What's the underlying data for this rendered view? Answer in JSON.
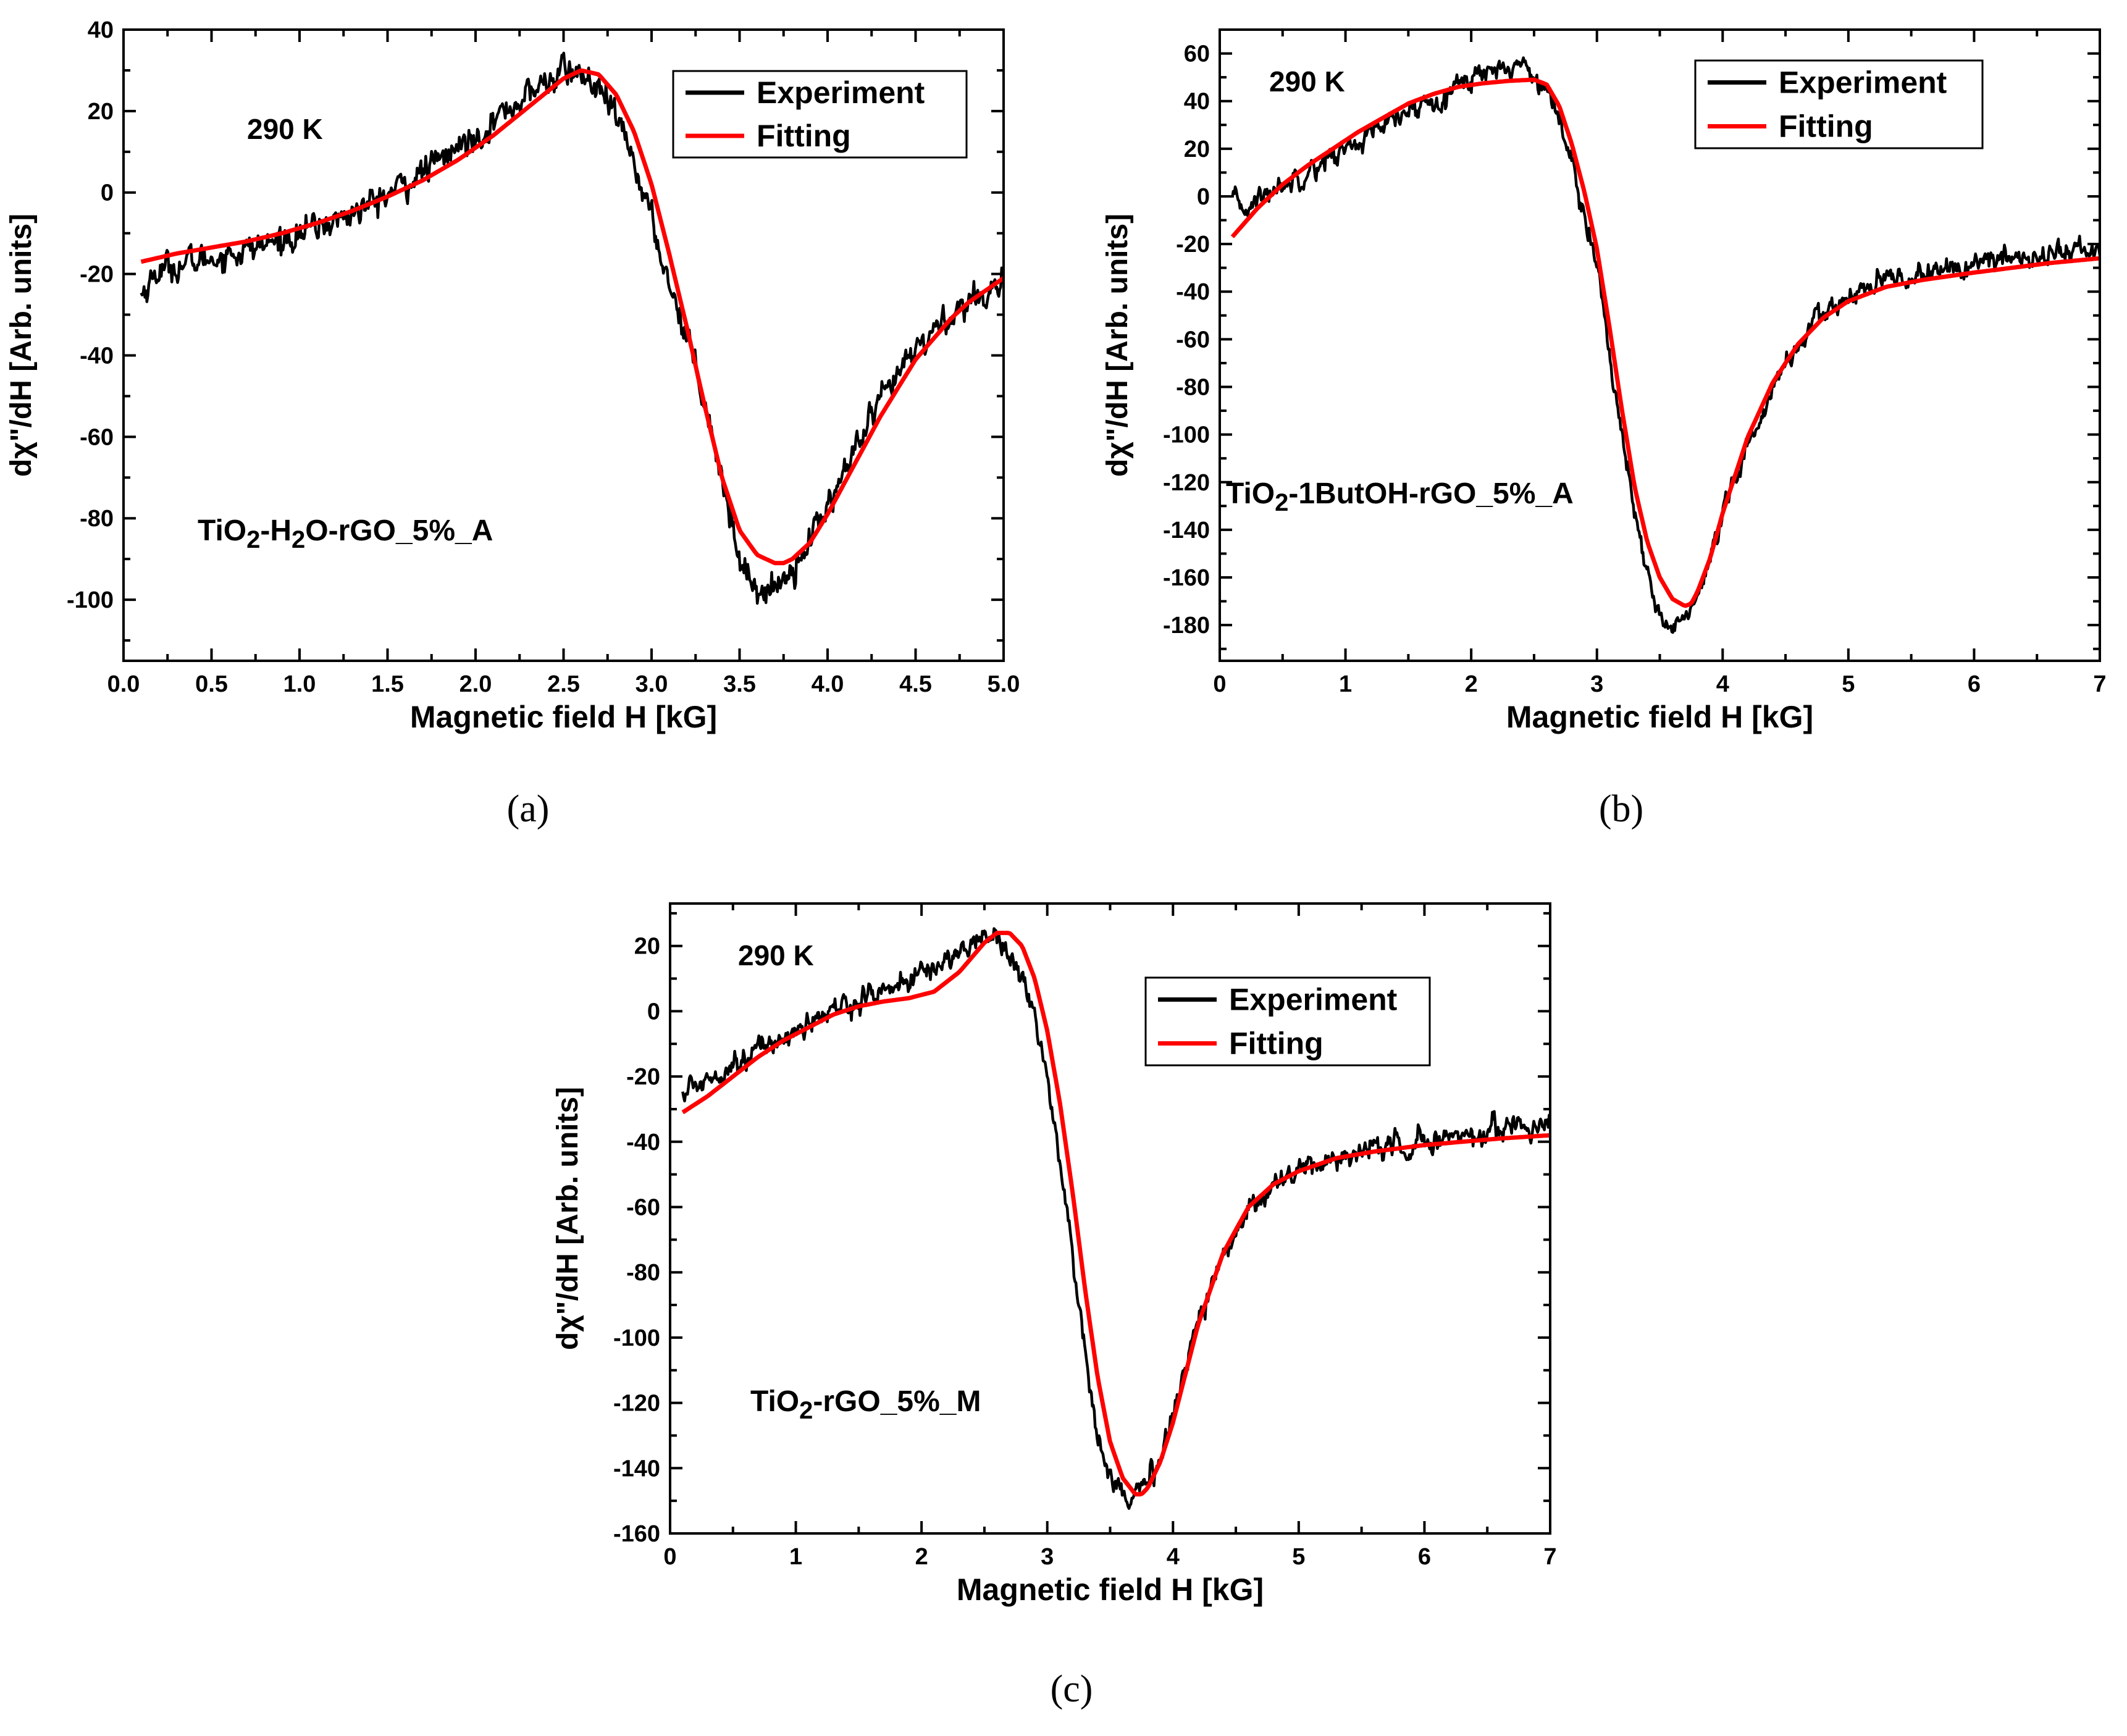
{
  "chart_data": [
    {
      "id": "a",
      "type": "line",
      "panel_label": "(a)",
      "title": "",
      "temperature_label": "290 K",
      "sample_label": {
        "parts": [
          {
            "t": "TiO"
          },
          {
            "t": "2",
            "sub": true
          },
          {
            "t": "-H"
          },
          {
            "t": "2",
            "sub": true
          },
          {
            "t": "O-rGO_5%_A"
          }
        ]
      },
      "xlabel": "Magnetic field H [kG]",
      "ylabel": "dχ\"/dH [Arb. units]",
      "xlim": [
        0.0,
        5.0
      ],
      "ylim": [
        -115,
        40
      ],
      "xticks": [
        0.0,
        0.5,
        1.0,
        1.5,
        2.0,
        2.5,
        3.0,
        3.5,
        4.0,
        4.5,
        5.0
      ],
      "xtick_labels": [
        "0.0",
        "0.5",
        "1.0",
        "1.5",
        "2.0",
        "2.5",
        "3.0",
        "3.5",
        "4.0",
        "4.5",
        "5.0"
      ],
      "yticks": [
        -100,
        -80,
        -60,
        -40,
        -20,
        0,
        20,
        40
      ],
      "ytick_labels": [
        "-100",
        "-80",
        "-60",
        "-40",
        "-20",
        "0",
        "20",
        "40"
      ],
      "legend": {
        "position": "top-right",
        "entries": [
          "Experiment",
          "Fitting"
        ]
      },
      "series": [
        {
          "name": "Experiment",
          "color": "#000000",
          "noise": 3.5,
          "x": [
            0.1,
            0.2,
            0.4,
            0.6,
            0.8,
            1.0,
            1.2,
            1.4,
            1.6,
            1.8,
            2.0,
            2.2,
            2.4,
            2.5,
            2.6,
            2.7,
            2.8,
            2.9,
            3.0,
            3.1,
            3.2,
            3.3,
            3.4,
            3.5,
            3.6,
            3.65,
            3.7,
            3.8,
            3.9,
            4.0,
            4.1,
            4.2,
            4.3,
            4.4,
            4.5,
            4.6,
            4.7,
            4.8,
            4.9,
            5.0
          ],
          "y": [
            -25,
            -19,
            -17,
            -15,
            -13,
            -10,
            -7,
            -3,
            2,
            8,
            14,
            21,
            27,
            30,
            29,
            25,
            18,
            8,
            -7,
            -22,
            -35,
            -50,
            -70,
            -90,
            -97,
            -99,
            -97,
            -92,
            -85,
            -77,
            -68,
            -60,
            -52,
            -45,
            -39,
            -34,
            -30,
            -27,
            -24,
            -22
          ]
        },
        {
          "name": "Fitting",
          "color": "#ff0000",
          "noise": 0,
          "x": [
            0.1,
            0.3,
            0.5,
            0.7,
            0.9,
            1.1,
            1.3,
            1.5,
            1.7,
            1.9,
            2.1,
            2.3,
            2.5,
            2.6,
            2.7,
            2.8,
            2.9,
            3.0,
            3.1,
            3.2,
            3.3,
            3.4,
            3.5,
            3.6,
            3.7,
            3.75,
            3.8,
            3.9,
            4.0,
            4.1,
            4.2,
            4.3,
            4.4,
            4.5,
            4.6,
            4.7,
            4.8,
            4.9,
            5.0
          ],
          "y": [
            -17,
            -15,
            -13.5,
            -12,
            -10,
            -7.5,
            -4.5,
            -1,
            3,
            8,
            14,
            21,
            28,
            30,
            29,
            24,
            15,
            2,
            -15,
            -33,
            -52,
            -70,
            -83,
            -89,
            -91,
            -91,
            -90,
            -86,
            -79,
            -71,
            -63,
            -55,
            -48,
            -41,
            -36,
            -31,
            -27,
            -24,
            -21
          ]
        }
      ]
    },
    {
      "id": "b",
      "type": "line",
      "panel_label": "(b)",
      "title": "",
      "temperature_label": "290 K",
      "sample_label": {
        "parts": [
          {
            "t": "TiO"
          },
          {
            "t": "2",
            "sub": true
          },
          {
            "t": "-1ButOH-rGO_5%_A"
          }
        ]
      },
      "xlabel": "Magnetic field H [kG]",
      "ylabel": "dχ\"/dH [Arb. units]",
      "xlim": [
        0,
        7
      ],
      "ylim": [
        -195,
        70
      ],
      "xticks": [
        0,
        1,
        2,
        3,
        4,
        5,
        6,
        7
      ],
      "xtick_labels": [
        "0",
        "1",
        "2",
        "3",
        "4",
        "5",
        "6",
        "7"
      ],
      "yticks": [
        -180,
        -160,
        -140,
        -120,
        -100,
        -80,
        -60,
        -40,
        -20,
        0,
        20,
        40,
        60
      ],
      "ytick_labels": [
        "-180",
        "-160",
        "-140",
        "-120",
        "-100",
        "-80",
        "-60",
        "-40",
        "-20",
        "0",
        "20",
        "40",
        "60"
      ],
      "legend": {
        "position": "top-right",
        "entries": [
          "Experiment",
          "Fitting"
        ]
      },
      "series": [
        {
          "name": "Experiment",
          "color": "#000000",
          "noise": 4.5,
          "x": [
            0.1,
            0.2,
            0.4,
            0.6,
            0.8,
            1.0,
            1.2,
            1.4,
            1.6,
            1.8,
            2.0,
            2.2,
            2.4,
            2.5,
            2.6,
            2.7,
            2.8,
            2.9,
            3.0,
            3.1,
            3.2,
            3.3,
            3.4,
            3.5,
            3.55,
            3.6,
            3.7,
            3.8,
            3.9,
            4.0,
            4.2,
            4.4,
            4.6,
            4.8,
            5.0,
            5.3,
            5.6,
            6.0,
            6.3,
            6.6,
            7.0
          ],
          "y": [
            -2,
            -5,
            2,
            8,
            14,
            20,
            26,
            32,
            38,
            44,
            50,
            54,
            55,
            52,
            45,
            32,
            15,
            -5,
            -30,
            -65,
            -100,
            -135,
            -160,
            -177,
            -181,
            -180,
            -176,
            -170,
            -155,
            -135,
            -105,
            -80,
            -62,
            -50,
            -42,
            -36,
            -32,
            -29,
            -26,
            -24,
            -22
          ]
        },
        {
          "name": "Fitting",
          "color": "#ff0000",
          "noise": 0,
          "x": [
            0.1,
            0.3,
            0.5,
            0.7,
            0.9,
            1.1,
            1.3,
            1.5,
            1.7,
            1.9,
            2.1,
            2.3,
            2.5,
            2.6,
            2.7,
            2.8,
            2.9,
            3.0,
            3.1,
            3.2,
            3.3,
            3.4,
            3.5,
            3.6,
            3.7,
            3.75,
            3.8,
            3.9,
            4.0,
            4.2,
            4.4,
            4.6,
            4.8,
            5.0,
            5.3,
            5.6,
            6.0,
            6.3,
            6.6,
            7.0
          ],
          "y": [
            -17,
            -5,
            5,
            13,
            20,
            27,
            33,
            39,
            43,
            46,
            47.5,
            48.5,
            49,
            47,
            38,
            22,
            2,
            -22,
            -55,
            -90,
            -122,
            -145,
            -160,
            -169,
            -172,
            -171,
            -166,
            -152,
            -133,
            -101,
            -78,
            -62,
            -51,
            -44,
            -38,
            -35,
            -32,
            -30,
            -28,
            -26
          ]
        }
      ]
    },
    {
      "id": "c",
      "type": "line",
      "panel_label": "(c)",
      "title": "",
      "temperature_label": "290 K",
      "sample_label": {
        "parts": [
          {
            "t": "TiO"
          },
          {
            "t": "2",
            "sub": true
          },
          {
            "t": "-rGO_5%_M"
          }
        ]
      },
      "xlabel": "Magnetic field H [kG]",
      "ylabel": "dχ\"/dH [Arb. units]",
      "xlim": [
        0,
        7
      ],
      "ylim": [
        -160,
        33
      ],
      "xticks": [
        0,
        1,
        2,
        3,
        4,
        5,
        6,
        7
      ],
      "xtick_labels": [
        "0",
        "1",
        "2",
        "3",
        "4",
        "5",
        "6",
        "7"
      ],
      "yticks": [
        -160,
        -140,
        -120,
        -100,
        -80,
        -60,
        -40,
        -20,
        0,
        20
      ],
      "ytick_labels": [
        "-160",
        "-140",
        "-120",
        "-100",
        "-80",
        "-60",
        "-40",
        "-20",
        "0",
        "20"
      ],
      "legend": {
        "position": "top-right",
        "entries": [
          "Experiment",
          "Fitting"
        ]
      },
      "series": [
        {
          "name": "Experiment",
          "color": "#000000",
          "noise": 3.5,
          "x": [
            0.1,
            0.2,
            0.4,
            0.6,
            0.8,
            1.0,
            1.2,
            1.4,
            1.6,
            1.8,
            2.0,
            2.2,
            2.4,
            2.5,
            2.6,
            2.7,
            2.8,
            2.9,
            3.0,
            3.1,
            3.2,
            3.3,
            3.4,
            3.5,
            3.6,
            3.65,
            3.7,
            3.8,
            3.9,
            4.0,
            4.2,
            4.4,
            4.6,
            4.8,
            5.0,
            5.3,
            5.6,
            6.0,
            6.3,
            6.6,
            7.0
          ],
          "y": [
            -25,
            -23,
            -18,
            -14,
            -10,
            -6,
            -2,
            2,
            5,
            8,
            11,
            16,
            20,
            24,
            23,
            18,
            10,
            -2,
            -20,
            -45,
            -75,
            -105,
            -128,
            -142,
            -148,
            -149,
            -148,
            -145,
            -138,
            -122,
            -95,
            -75,
            -60,
            -53,
            -49,
            -45,
            -42,
            -40,
            -38,
            -36,
            -34
          ]
        },
        {
          "name": "Fitting",
          "color": "#ff0000",
          "noise": 0,
          "x": [
            0.1,
            0.3,
            0.5,
            0.7,
            0.9,
            1.1,
            1.3,
            1.5,
            1.7,
            1.9,
            2.1,
            2.3,
            2.5,
            2.6,
            2.7,
            2.8,
            2.9,
            3.0,
            3.1,
            3.2,
            3.3,
            3.4,
            3.5,
            3.6,
            3.7,
            3.75,
            3.8,
            3.9,
            4.0,
            4.2,
            4.4,
            4.6,
            4.8,
            5.0,
            5.3,
            5.6,
            6.0,
            6.3,
            6.6,
            7.0
          ],
          "y": [
            -31,
            -26,
            -20,
            -14,
            -9,
            -5,
            -1,
            1.5,
            3,
            4,
            6,
            12,
            21,
            24,
            24,
            20,
            10,
            -6,
            -28,
            -55,
            -85,
            -112,
            -132,
            -143,
            -148,
            -148,
            -146,
            -138,
            -126,
            -96,
            -74,
            -60,
            -53,
            -49,
            -45,
            -43,
            -41,
            -40,
            -39,
            -38
          ]
        }
      ]
    }
  ]
}
